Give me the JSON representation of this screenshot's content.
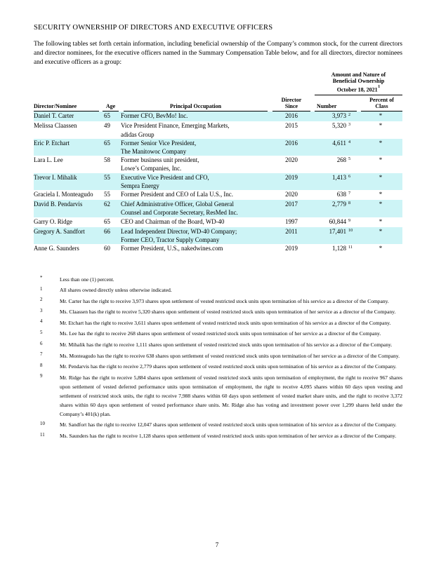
{
  "page": {
    "title": "SECURITY OWNERSHIP OF DIRECTORS AND EXECUTIVE OFFICERS",
    "intro": "The following tables set forth certain information, including beneficial ownership of the Company’s common stock, for the current directors and director nominees, for the executive officers named in the Summary Compensation Table below, and for all directors, director nominees and executive officers as a group:",
    "page_number": "7"
  },
  "table": {
    "highlight_color": "#cdf4f6",
    "group_header": {
      "line1": "Amount and Nature of",
      "line2": "Beneficial Ownership",
      "line3": "October 18, 2021",
      "footnote_ref": "1"
    },
    "columns": {
      "name": "Director/Nominee",
      "age": "Age",
      "occupation": "Principal Occupation",
      "since1": "Director",
      "since2": "Since",
      "number": "Number",
      "percent1": "Percent of",
      "percent2": "Class"
    },
    "rows": [
      {
        "name": "Daniel T. Carter",
        "age": "65",
        "occ1": "Former CFO, BevMo! Inc.",
        "since": "2016",
        "number": "3,973",
        "ref": "2",
        "percent": "*"
      },
      {
        "name": "Melissa Claassen",
        "age": "49",
        "occ1": "Vice President Finance, Emerging Markets,",
        "occ2": "adidas Group",
        "since": "2015",
        "number": "5,320",
        "ref": "3",
        "percent": "*"
      },
      {
        "name": "Eric P. Etchart",
        "age": "65",
        "occ1": "Former Senior Vice President,",
        "occ2": "The Manitowoc Company",
        "since": "2016",
        "number": "4,611",
        "ref": "4",
        "percent": "*"
      },
      {
        "name": "Lara L. Lee",
        "age": "58",
        "occ1": "Former business unit president,",
        "occ2": "Lowe’s Companies, Inc.",
        "since": "2020",
        "number": "268",
        "ref": "5",
        "percent": "*"
      },
      {
        "name": "Trevor I. Mihalik",
        "age": "55",
        "occ1": "Executive Vice President and CFO,",
        "occ2": "Sempra Energy",
        "since": "2019",
        "number": "1,413",
        "ref": "6",
        "percent": "*"
      },
      {
        "name": "Graciela I. Monteagudo",
        "age": "55",
        "occ1": "Former President and CEO of Lala U.S., Inc.",
        "since": "2020",
        "number": "638",
        "ref": "7",
        "percent": "*"
      },
      {
        "name": "David B. Pendarvis",
        "age": "62",
        "occ1": "Chief Administrative Officer, Global General",
        "occ2": "Counsel and Corporate Secretary, ResMed Inc.",
        "since": "2017",
        "number": "2,779",
        "ref": "8",
        "percent": "*"
      },
      {
        "name": "Garry O. Ridge",
        "age": "65",
        "occ1": "CEO and Chairman of the Board, WD-40",
        "since": "1997",
        "number": "60,844",
        "ref": "9",
        "percent": "*"
      },
      {
        "name": "Gregory A. Sandfort",
        "age": "66",
        "occ1": "Lead Independent Director, WD-40 Company;",
        "occ2": "Former CEO, Tractor Supply Company",
        "since": "2011",
        "number": "17,401",
        "ref": "10",
        "percent": "*"
      },
      {
        "name": "Anne G. Saunders",
        "age": "60",
        "occ1": "Former President, U.S., nakedwines.com",
        "since": "2019",
        "number": "1,128",
        "ref": "11",
        "percent": "*"
      }
    ]
  },
  "footnotes": [
    {
      "marker": "*",
      "text": "Less than one (1) percent."
    },
    {
      "marker": "1",
      "text": "All shares owned directly unless otherwise indicated."
    },
    {
      "marker": "2",
      "text": "Mr. Carter has the right to receive 3,973 shares upon settlement of vested restricted stock units upon termination of his service as a director of the Company."
    },
    {
      "marker": "3",
      "text": "Ms. Claassen has the right to receive 5,320 shares upon settlement of vested restricted stock units upon termination of her service as a director of the Company."
    },
    {
      "marker": "4",
      "text": "Mr. Etchart has the right to receive 3,611 shares upon settlement of vested restricted stock units upon termination of his service as a director of the Company."
    },
    {
      "marker": "5",
      "text": "Ms. Lee has the right to receive 268 shares upon settlement of vested restricted stock units upon termination of her service as a director of the Company."
    },
    {
      "marker": "6",
      "text": "Mr. Mihalik has the right to receive 1,111 shares upon settlement of vested restricted stock units upon termination of his service as a director of the Company."
    },
    {
      "marker": "7",
      "text": "Ms. Monteagudo has the right to receive 638 shares upon settlement of vested restricted stock units upon termination of her service as a director of the Company."
    },
    {
      "marker": "8",
      "text": "Mr. Pendarvis has the right to receive 2,779 shares upon settlement of vested restricted stock units upon termination of his service as a director of the Company."
    },
    {
      "marker": "9",
      "text": "Mr. Ridge has the right to receive 5,884 shares upon settlement of vested restricted stock units upon termination of employment, the right to receive 967 shares upon settlement of vested deferred performance units upon termination of employment, the right to receive 4,095 shares within 60 days upon vesting and settlement of restricted stock units, the right to receive 7,988 shares within 60 days upon settlement of vested market share units, and the right to receive 3,372 shares within 60 days upon settlement of vested performance share units. Mr. Ridge also has voting and investment power over 1,299 shares held under the Company’s 401(k) plan."
    },
    {
      "marker": "10",
      "text": "Mr. Sandfort has the right to receive 12,047 shares upon settlement of vested restricted stock units upon termination of his service as a director of the Company."
    },
    {
      "marker": "11",
      "text": "Ms. Saunders has the right to receive 1,128 shares upon settlement of vested restricted stock units upon termination of her service as a director of the Company."
    }
  ]
}
